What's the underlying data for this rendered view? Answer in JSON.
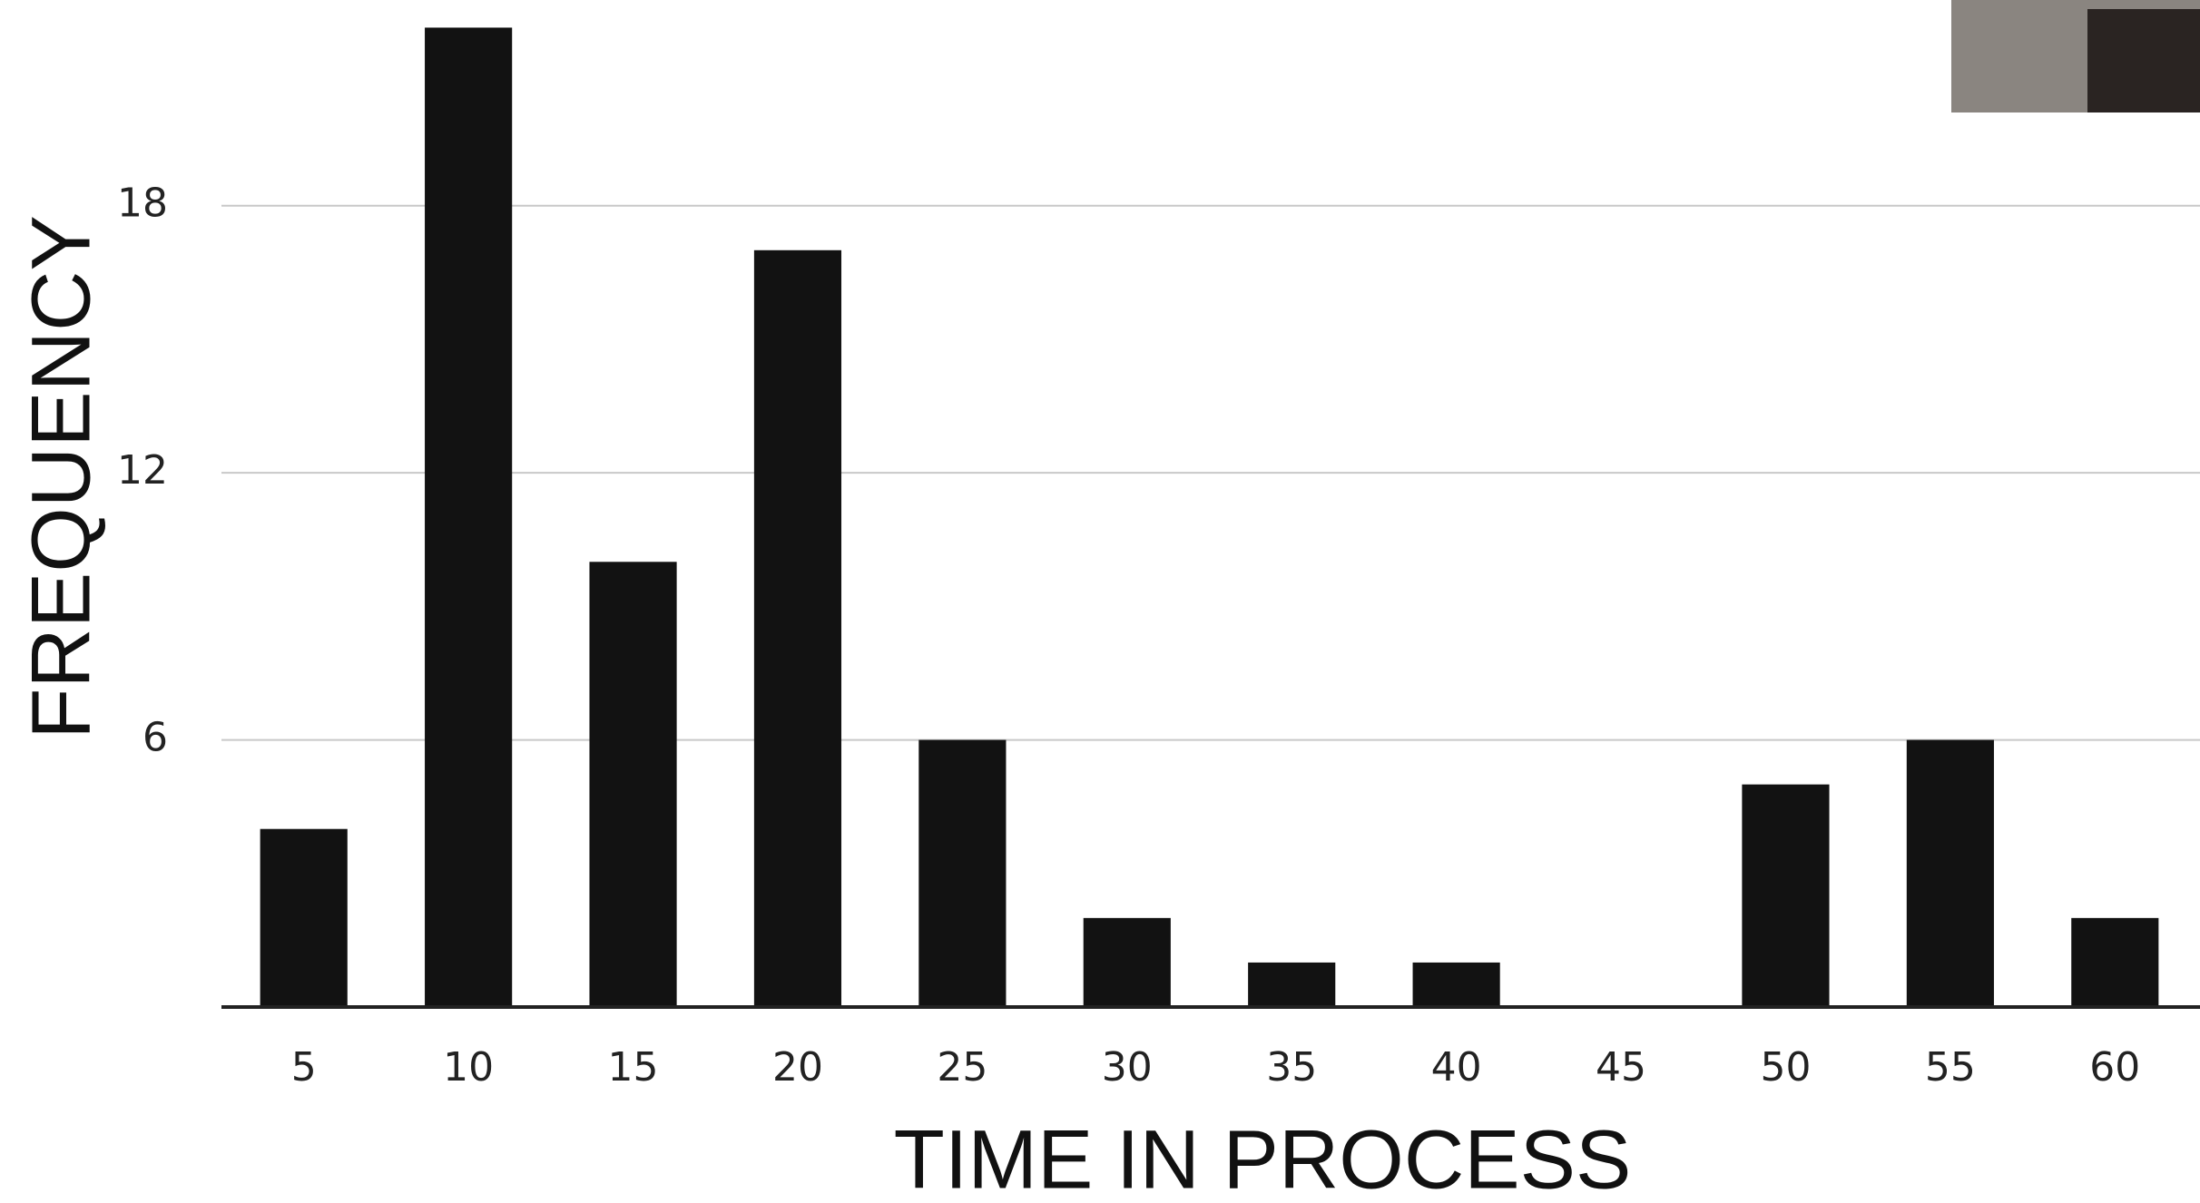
{
  "chart_data": {
    "type": "bar",
    "x_label": "TIME IN PROCESS",
    "y_label": "FREQUENCY",
    "categories": [
      "5",
      "10",
      "15",
      "20",
      "25",
      "30",
      "35",
      "40",
      "45",
      "50",
      "55",
      "60"
    ],
    "values": [
      4,
      22,
      10,
      17,
      6,
      2,
      1,
      1,
      0,
      5,
      6,
      2
    ],
    "color": "#121212",
    "ylim": [
      0,
      22.6
    ],
    "yticks": [
      6,
      12,
      18
    ],
    "grid": true
  }
}
